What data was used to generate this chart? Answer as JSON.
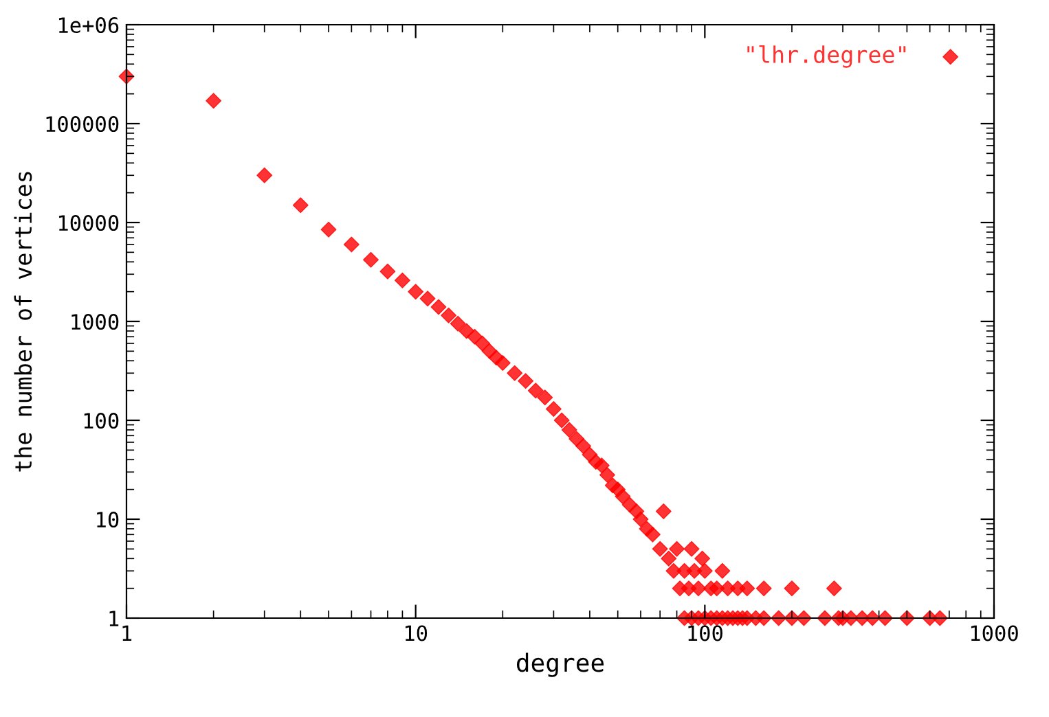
{
  "chart_data": {
    "type": "scatter",
    "xlabel": "degree",
    "ylabel": "the number of vertices",
    "log": "xy",
    "marker": "diamond",
    "legend": "top right",
    "grid": false,
    "xlim": [
      1,
      1000
    ],
    "xticks": [
      1,
      10,
      100,
      1000
    ],
    "ylim": [
      1,
      1000000
    ],
    "yticks": [
      1,
      10,
      100,
      1000,
      10000,
      100000,
      {
        "value": 1000000,
        "label": "1e+06"
      }
    ],
    "series": [
      {
        "name": "\"lhr.degree\"",
        "color": "#ff0000",
        "x": [
          1,
          2,
          3,
          4,
          5,
          6,
          7,
          8,
          9,
          10,
          11,
          12,
          13,
          14,
          15,
          16,
          17,
          18,
          19,
          20,
          22,
          24,
          26,
          28,
          30,
          32,
          34,
          36,
          38,
          40,
          42,
          44,
          46,
          48,
          50,
          52,
          55,
          58,
          60,
          63,
          66,
          70,
          72,
          75,
          78,
          80,
          82,
          85,
          88,
          90,
          92,
          95,
          98,
          100,
          105,
          110,
          115,
          120,
          130,
          140,
          160,
          200,
          280,
          85,
          90,
          95,
          100,
          105,
          110,
          115,
          120,
          125,
          130,
          135,
          140,
          150,
          160,
          180,
          200,
          220,
          260,
          290,
          300,
          320,
          350,
          380,
          420,
          500,
          600,
          650
        ],
        "values": [
          300000,
          170000,
          30000,
          15000,
          8500,
          6000,
          4200,
          3200,
          2600,
          2000,
          1700,
          1400,
          1150,
          950,
          800,
          700,
          600,
          500,
          430,
          380,
          300,
          250,
          200,
          170,
          130,
          100,
          80,
          65,
          55,
          45,
          38,
          35,
          28,
          22,
          20,
          17,
          14,
          12,
          10,
          8,
          7,
          5,
          12,
          4,
          3,
          5,
          2,
          3,
          2,
          5,
          3,
          2,
          4,
          3,
          2,
          2,
          3,
          2,
          2,
          2,
          2,
          2,
          2,
          1,
          1,
          1,
          1,
          1,
          1,
          1,
          1,
          1,
          1,
          1,
          1,
          1,
          1,
          1,
          1,
          1,
          1,
          1,
          1,
          1,
          1,
          1,
          1,
          1,
          1,
          1
        ]
      }
    ]
  }
}
